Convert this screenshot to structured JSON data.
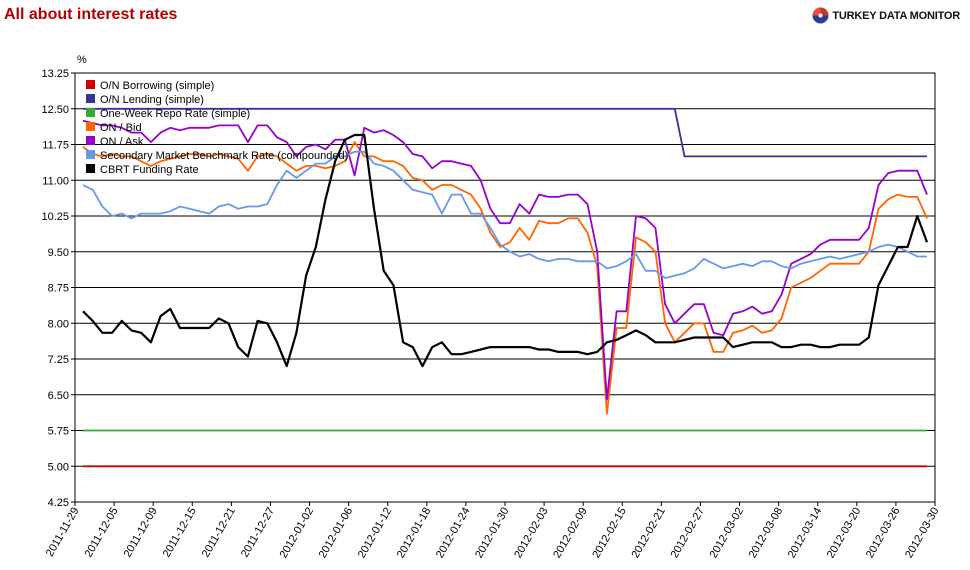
{
  "page": {
    "title": "All about interest rates",
    "brand": "TURKEY DATA MONITOR",
    "brand_logo_colors": [
      "#c0392b",
      "#2c3e8f",
      "#ffffff"
    ]
  },
  "chart_data": {
    "type": "line",
    "title": "All about interest rates",
    "ylabel": "%",
    "xlabel": "",
    "ylim": [
      4.25,
      13.25
    ],
    "yticks": [
      "4.25",
      "5.00",
      "5.75",
      "6.50",
      "7.25",
      "8.00",
      "8.75",
      "9.50",
      "10.25",
      "11.00",
      "11.75",
      "12.50",
      "13.25"
    ],
    "xticks": [
      "2011-11-29",
      "2011-12-05",
      "2011-12-09",
      "2011-12-15",
      "2011-12-21",
      "2011-12-27",
      "2012-01-02",
      "2012-01-06",
      "2012-01-12",
      "2012-01-18",
      "2012-01-24",
      "2012-01-30",
      "2012-02-03",
      "2012-02-09",
      "2012-02-15",
      "2012-02-21",
      "2012-02-27",
      "2012-03-02",
      "2012-03-08",
      "2012-03-14",
      "2012-03-20",
      "2012-03-26",
      "2012-03-30"
    ],
    "points_per_series": 88,
    "grid": "horizontal",
    "legend_position": "top-left inside",
    "series": [
      {
        "name": "O/N Borrowing (simple)",
        "color": "#cc0000",
        "values": [
          5.0,
          5.0,
          5.0,
          5.0,
          5.0,
          5.0,
          5.0,
          5.0,
          5.0,
          5.0,
          5.0,
          5.0,
          5.0,
          5.0,
          5.0,
          5.0,
          5.0,
          5.0,
          5.0,
          5.0,
          5.0,
          5.0,
          5.0,
          5.0,
          5.0,
          5.0,
          5.0,
          5.0,
          5.0,
          5.0,
          5.0,
          5.0,
          5.0,
          5.0,
          5.0,
          5.0,
          5.0,
          5.0,
          5.0,
          5.0,
          5.0,
          5.0,
          5.0,
          5.0,
          5.0,
          5.0,
          5.0,
          5.0,
          5.0,
          5.0,
          5.0,
          5.0,
          5.0,
          5.0,
          5.0,
          5.0,
          5.0,
          5.0,
          5.0,
          5.0,
          5.0,
          5.0,
          5.0,
          5.0,
          5.0,
          5.0,
          5.0,
          5.0,
          5.0,
          5.0,
          5.0,
          5.0,
          5.0,
          5.0,
          5.0,
          5.0,
          5.0,
          5.0,
          5.0,
          5.0,
          5.0,
          5.0,
          5.0,
          5.0,
          5.0,
          5.0,
          5.0,
          5.0
        ]
      },
      {
        "name": "O/N Lending (simple)",
        "color": "#333399",
        "values": [
          12.5,
          12.5,
          12.5,
          12.5,
          12.5,
          12.5,
          12.5,
          12.5,
          12.5,
          12.5,
          12.5,
          12.5,
          12.5,
          12.5,
          12.5,
          12.5,
          12.5,
          12.5,
          12.5,
          12.5,
          12.5,
          12.5,
          12.5,
          12.5,
          12.5,
          12.5,
          12.5,
          12.5,
          12.5,
          12.5,
          12.5,
          12.5,
          12.5,
          12.5,
          12.5,
          12.5,
          12.5,
          12.5,
          12.5,
          12.5,
          12.5,
          12.5,
          12.5,
          12.5,
          12.5,
          12.5,
          12.5,
          12.5,
          12.5,
          12.5,
          12.5,
          12.5,
          12.5,
          12.5,
          12.5,
          12.5,
          12.5,
          12.5,
          12.5,
          12.5,
          12.5,
          12.5,
          11.5,
          11.5,
          11.5,
          11.5,
          11.5,
          11.5,
          11.5,
          11.5,
          11.5,
          11.5,
          11.5,
          11.5,
          11.5,
          11.5,
          11.5,
          11.5,
          11.5,
          11.5,
          11.5,
          11.5,
          11.5,
          11.5,
          11.5,
          11.5,
          11.5,
          11.5
        ]
      },
      {
        "name": "One-Week Repo Rate (simple)",
        "color": "#33aa33",
        "values": [
          5.75,
          5.75,
          5.75,
          5.75,
          5.75,
          5.75,
          5.75,
          5.75,
          5.75,
          5.75,
          5.75,
          5.75,
          5.75,
          5.75,
          5.75,
          5.75,
          5.75,
          5.75,
          5.75,
          5.75,
          5.75,
          5.75,
          5.75,
          5.75,
          5.75,
          5.75,
          5.75,
          5.75,
          5.75,
          5.75,
          5.75,
          5.75,
          5.75,
          5.75,
          5.75,
          5.75,
          5.75,
          5.75,
          5.75,
          5.75,
          5.75,
          5.75,
          5.75,
          5.75,
          5.75,
          5.75,
          5.75,
          5.75,
          5.75,
          5.75,
          5.75,
          5.75,
          5.75,
          5.75,
          5.75,
          5.75,
          5.75,
          5.75,
          5.75,
          5.75,
          5.75,
          5.75,
          5.75,
          5.75,
          5.75,
          5.75,
          5.75,
          5.75,
          5.75,
          5.75,
          5.75,
          5.75,
          5.75,
          5.75,
          5.75,
          5.75,
          5.75,
          5.75,
          5.75,
          5.75,
          5.75,
          5.75,
          5.75,
          5.75,
          5.75,
          5.75,
          5.75,
          5.75
        ]
      },
      {
        "name": "ON / Bid",
        "color": "#ff6600",
        "values": [
          11.7,
          11.55,
          11.5,
          11.55,
          11.5,
          11.5,
          11.4,
          11.3,
          11.4,
          11.45,
          11.5,
          11.55,
          11.55,
          11.5,
          11.55,
          11.5,
          11.45,
          11.2,
          11.5,
          11.55,
          11.5,
          11.35,
          11.2,
          11.3,
          11.3,
          11.25,
          11.3,
          11.4,
          11.8,
          11.5,
          11.5,
          11.4,
          11.4,
          11.3,
          11.05,
          11.0,
          10.8,
          10.9,
          10.9,
          10.8,
          10.7,
          10.4,
          9.9,
          9.6,
          9.7,
          10.0,
          9.75,
          10.15,
          10.1,
          10.1,
          10.2,
          10.2,
          9.9,
          9.2,
          6.1,
          7.9,
          7.9,
          9.8,
          9.7,
          9.5,
          8.0,
          7.6,
          7.8,
          8.0,
          8.0,
          7.4,
          7.4,
          7.8,
          7.85,
          7.95,
          7.8,
          7.85,
          8.1,
          8.75,
          8.85,
          8.95,
          9.1,
          9.25,
          9.25,
          9.25,
          9.25,
          9.5,
          10.4,
          10.6,
          10.7,
          10.65,
          10.65,
          10.2
        ]
      },
      {
        "name": "ON / Ask",
        "color": "#9900cc",
        "values": [
          12.25,
          12.2,
          12.15,
          12.15,
          12.1,
          12.0,
          12.0,
          11.8,
          12.0,
          12.1,
          12.05,
          12.1,
          12.1,
          12.1,
          12.15,
          12.15,
          12.15,
          11.8,
          12.15,
          12.15,
          11.9,
          11.8,
          11.5,
          11.7,
          11.75,
          11.65,
          11.85,
          11.85,
          11.1,
          12.1,
          12.0,
          12.05,
          11.95,
          11.8,
          11.55,
          11.5,
          11.25,
          11.4,
          11.4,
          11.35,
          11.3,
          11.0,
          10.4,
          10.1,
          10.1,
          10.5,
          10.3,
          10.7,
          10.65,
          10.65,
          10.7,
          10.7,
          10.5,
          9.5,
          6.4,
          8.25,
          8.25,
          10.25,
          10.2,
          10.0,
          8.4,
          8.0,
          8.2,
          8.4,
          8.4,
          7.8,
          7.75,
          8.2,
          8.25,
          8.35,
          8.2,
          8.25,
          8.6,
          9.25,
          9.35,
          9.45,
          9.65,
          9.75,
          9.75,
          9.75,
          9.75,
          10.0,
          10.9,
          11.15,
          11.2,
          11.2,
          11.2,
          10.7
        ]
      },
      {
        "name": "Secondary Market Benchmark Rate (compounded)",
        "color": "#6699ee",
        "values": [
          10.9,
          10.8,
          10.45,
          10.25,
          10.3,
          10.2,
          10.3,
          10.3,
          10.3,
          10.35,
          10.45,
          10.4,
          10.35,
          10.3,
          10.45,
          10.5,
          10.4,
          10.45,
          10.45,
          10.5,
          10.9,
          11.2,
          11.05,
          11.2,
          11.35,
          11.35,
          11.5,
          11.5,
          11.6,
          11.6,
          11.35,
          11.3,
          11.2,
          11.0,
          10.8,
          10.75,
          10.7,
          10.3,
          10.7,
          10.7,
          10.3,
          10.3,
          10.0,
          9.65,
          9.5,
          9.4,
          9.45,
          9.35,
          9.3,
          9.35,
          9.35,
          9.3,
          9.3,
          9.3,
          9.15,
          9.2,
          9.3,
          9.45,
          9.1,
          9.1,
          8.95,
          9.0,
          9.05,
          9.15,
          9.35,
          9.25,
          9.15,
          9.2,
          9.25,
          9.2,
          9.3,
          9.3,
          9.2,
          9.15,
          9.25,
          9.3,
          9.35,
          9.4,
          9.35,
          9.4,
          9.45,
          9.5,
          9.6,
          9.65,
          9.6,
          9.5,
          9.4,
          9.4
        ]
      },
      {
        "name": "CBRT Funding Rate",
        "color": "#000000",
        "values": [
          8.25,
          8.05,
          7.8,
          7.8,
          8.05,
          7.85,
          7.8,
          7.6,
          8.15,
          8.3,
          7.9,
          7.9,
          7.9,
          7.9,
          8.1,
          8.0,
          7.5,
          7.3,
          8.05,
          8.0,
          7.6,
          7.1,
          7.8,
          9.0,
          9.6,
          10.6,
          11.4,
          11.85,
          11.95,
          11.95,
          10.4,
          9.1,
          8.8,
          7.6,
          7.5,
          7.1,
          7.5,
          7.6,
          7.35,
          7.35,
          7.4,
          7.45,
          7.5,
          7.5,
          7.5,
          7.5,
          7.5,
          7.45,
          7.45,
          7.4,
          7.4,
          7.4,
          7.35,
          7.4,
          7.6,
          7.65,
          7.75,
          7.85,
          7.75,
          7.6,
          7.6,
          7.6,
          7.65,
          7.7,
          7.7,
          7.7,
          7.7,
          7.5,
          7.55,
          7.6,
          7.6,
          7.6,
          7.5,
          7.5,
          7.55,
          7.55,
          7.5,
          7.5,
          7.55,
          7.55,
          7.55,
          7.7,
          8.8,
          9.2,
          9.6,
          9.6,
          10.25,
          9.7
        ]
      }
    ]
  }
}
